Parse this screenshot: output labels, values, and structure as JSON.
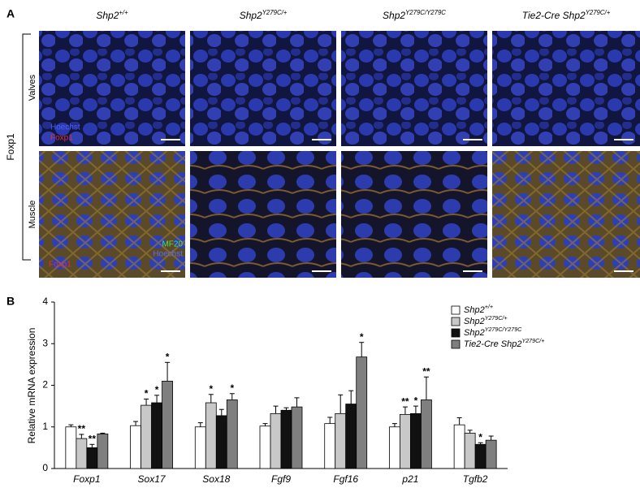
{
  "panel_a": {
    "letter": "A",
    "columns": [
      {
        "name": "Shp2",
        "superscript": "+/+"
      },
      {
        "name": "Shp2",
        "superscript": "Y279C/+"
      },
      {
        "name": "Shp2",
        "superscript": "Y279C/Y279C"
      },
      {
        "name": "Tie2-Cre Shp2",
        "superscript": "Y279C/+"
      }
    ],
    "rows": [
      "Valves",
      "Muscle"
    ],
    "side_label": "Foxp1",
    "valve_stain_labels": [
      "Hoechst",
      "Foxp1"
    ],
    "muscle_stain_labels": [
      "MF20",
      "Hoechst",
      "Foxp1"
    ]
  },
  "chart_data": {
    "type": "bar",
    "letter": "B",
    "y_label": "Relative mRNA expression",
    "categories": [
      "Foxp1",
      "Sox17",
      "Sox18",
      "Fgf9",
      "Fgf16",
      "p21",
      "Tgfb2"
    ],
    "series": [
      {
        "name": "Shp2",
        "superscript": "+/+",
        "color": "#ffffff",
        "values": [
          1.0,
          1.03,
          1.0,
          1.02,
          1.08,
          1.0,
          1.05
        ],
        "errors": [
          0.05,
          0.1,
          0.1,
          0.06,
          0.15,
          0.08,
          0.17
        ],
        "annotations": [
          null,
          null,
          null,
          null,
          null,
          null,
          null
        ]
      },
      {
        "name": "Shp2",
        "superscript": "Y279C/+",
        "color": "#c8c8c8",
        "values": [
          0.72,
          1.52,
          1.58,
          1.32,
          1.32,
          1.3,
          0.85
        ],
        "errors": [
          0.1,
          0.15,
          0.2,
          0.18,
          0.45,
          0.18,
          0.07
        ],
        "annotations": [
          "**",
          "*",
          "*",
          null,
          null,
          "**",
          null
        ]
      },
      {
        "name": "Shp2",
        "superscript": "Y279C/Y279C",
        "color": "#111111",
        "values": [
          0.5,
          1.58,
          1.27,
          1.4,
          1.55,
          1.32,
          0.58
        ],
        "errors": [
          0.08,
          0.18,
          0.15,
          0.06,
          0.32,
          0.18,
          0.04
        ],
        "annotations": [
          "**",
          "*",
          null,
          null,
          null,
          "*",
          "*"
        ]
      },
      {
        "name": "Tie2-Cre Shp2",
        "superscript": "Y279C/+",
        "color": "#7f7f7f",
        "values": [
          0.83,
          2.1,
          1.65,
          1.48,
          2.68,
          1.65,
          0.68
        ],
        "errors": [
          0.02,
          0.45,
          0.15,
          0.22,
          0.35,
          0.55,
          0.1
        ],
        "annotations": [
          null,
          "*",
          "*",
          null,
          "*",
          "**",
          null
        ]
      }
    ],
    "ylim": [
      0,
      4
    ],
    "yticks": [
      0,
      1,
      2,
      3,
      4
    ]
  }
}
